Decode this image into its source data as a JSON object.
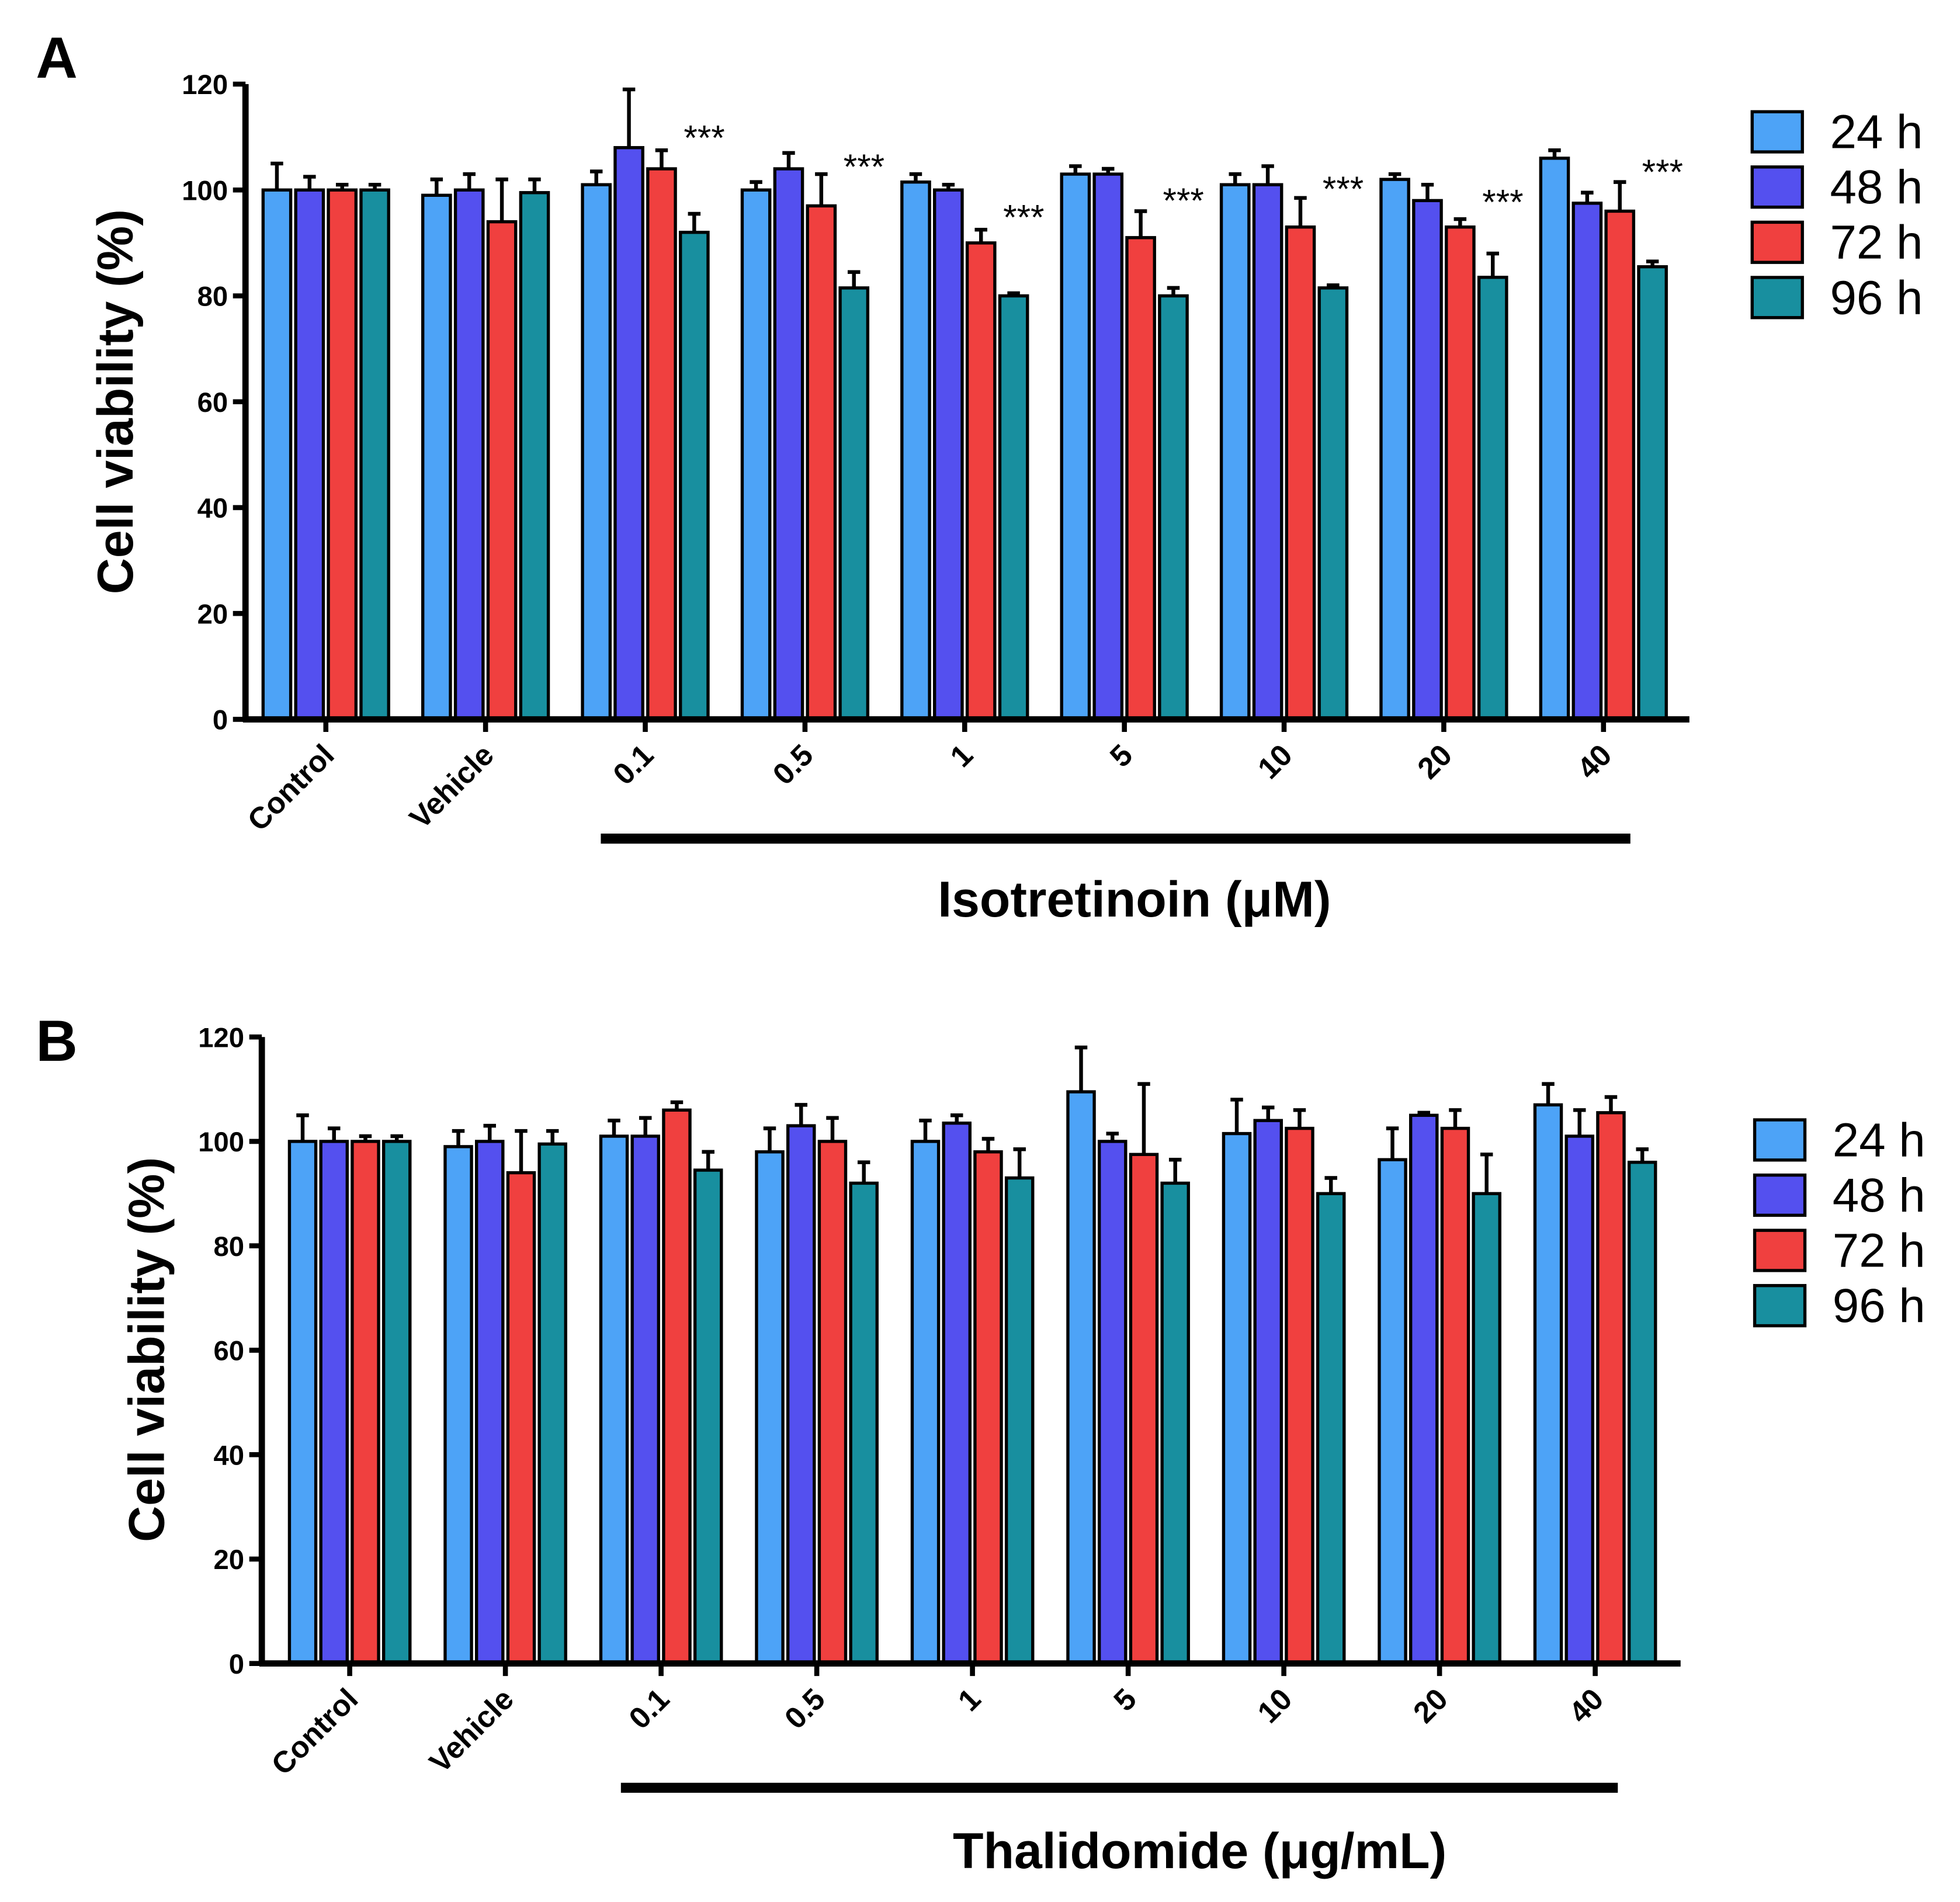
{
  "colors": {
    "24 h": "#4da3f7",
    "48 h": "#5450ef",
    "72 h": "#f0403f",
    "96 h": "#188f9f"
  },
  "chart_data": [
    {
      "type": "bar",
      "panel_label": "A",
      "title": "",
      "ylabel": "Cell viability (%)",
      "xlabel": "Isotretinoin (μM)",
      "ylim": [
        0,
        120
      ],
      "yticks": [
        "0",
        "20",
        "40",
        "60",
        "80",
        "100",
        "120"
      ],
      "categories": [
        "Control",
        "Vehicle",
        "0.1",
        "0.5",
        "1",
        "5",
        "10",
        "20",
        "40"
      ],
      "legend_position": "right",
      "series": [
        {
          "name": "24 h",
          "values": [
            100,
            99,
            101,
            100,
            101.5,
            103,
            101,
            102,
            106
          ],
          "errors": [
            5,
            3,
            2.5,
            1.5,
            1.5,
            1.5,
            2,
            1,
            1.5
          ]
        },
        {
          "name": "48 h",
          "values": [
            100,
            100,
            108,
            104,
            100,
            103,
            101,
            98,
            97.5
          ],
          "errors": [
            2.5,
            3,
            11,
            3,
            1,
            1,
            3.5,
            3,
            2
          ]
        },
        {
          "name": "72 h",
          "values": [
            100,
            94,
            104,
            97,
            90,
            91,
            93,
            93,
            96
          ],
          "errors": [
            1,
            8,
            3.5,
            6,
            2.5,
            5,
            5.5,
            1.5,
            5.5
          ]
        },
        {
          "name": "96 h",
          "values": [
            100,
            99.5,
            92,
            81.5,
            80,
            80,
            81.5,
            83.5,
            85.5
          ],
          "errors": [
            1,
            2.5,
            3.5,
            3,
            0.5,
            1.5,
            0.5,
            4.5,
            1
          ]
        }
      ],
      "annotations": [
        "",
        "",
        "***",
        "***",
        "***",
        "***",
        "***",
        "***",
        "***"
      ]
    },
    {
      "type": "bar",
      "panel_label": "B",
      "title": "",
      "ylabel": "Cell viability (%)",
      "xlabel": "Thalidomide (μg/mL)",
      "ylim": [
        0,
        120
      ],
      "yticks": [
        "0",
        "20",
        "40",
        "60",
        "80",
        "100",
        "120"
      ],
      "categories": [
        "Control",
        "Vehicle",
        "0.1",
        "0.5",
        "1",
        "5",
        "10",
        "20",
        "40"
      ],
      "legend_position": "right",
      "series": [
        {
          "name": "24 h",
          "values": [
            100,
            99,
            101,
            98,
            100,
            109.5,
            101.5,
            96.5,
            107
          ],
          "errors": [
            5,
            3,
            3,
            4.5,
            4,
            8.5,
            6.5,
            6,
            4
          ]
        },
        {
          "name": "48 h",
          "values": [
            100,
            100,
            101,
            103,
            103.5,
            100,
            104,
            105,
            101
          ],
          "errors": [
            2.5,
            3,
            3.5,
            4,
            1.5,
            1.5,
            2.5,
            0.5,
            5
          ]
        },
        {
          "name": "72 h",
          "values": [
            100,
            94,
            106,
            100,
            98,
            97.5,
            102.5,
            102.5,
            105.5
          ],
          "errors": [
            1,
            8,
            1.5,
            4.5,
            2.5,
            13.5,
            3.5,
            3.5,
            3
          ]
        },
        {
          "name": "96 h",
          "values": [
            100,
            99.5,
            94.5,
            92,
            93,
            92,
            90,
            90,
            96
          ],
          "errors": [
            1,
            2.5,
            3.5,
            4,
            5.5,
            4.5,
            3,
            7.5,
            2.5
          ]
        }
      ],
      "annotations": [
        "",
        "",
        "",
        "",
        "",
        "",
        "",
        "",
        ""
      ]
    }
  ]
}
